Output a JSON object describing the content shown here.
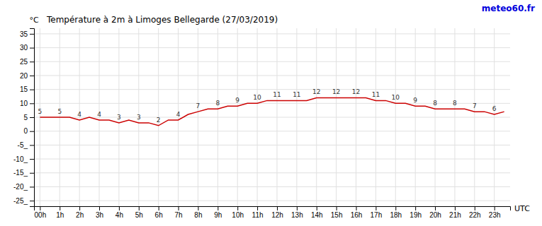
{
  "chart_data": {
    "type": "line",
    "title": "Température à 2m à Limoges Bellegarde (27/03/2019)",
    "x_label": "UTC",
    "y_label": "°C",
    "annotations": [
      {
        "text": "meteo60.fr",
        "color": "#0000dd"
      }
    ],
    "x": [
      0,
      0.5,
      1,
      1.5,
      2,
      2.5,
      3,
      3.5,
      4,
      4.5,
      5,
      5.5,
      6,
      6.5,
      7,
      7.5,
      8,
      8.5,
      9,
      9.5,
      10,
      10.5,
      11,
      11.5,
      12,
      12.5,
      13,
      13.5,
      14,
      14.5,
      15,
      15.5,
      16,
      16.5,
      17,
      17.5,
      18,
      18.5,
      19,
      19.5,
      20,
      20.5,
      21,
      21.5,
      22,
      22.5,
      23,
      23.5
    ],
    "values": [
      5,
      5,
      5,
      5,
      4,
      5,
      4,
      4,
      3,
      4,
      3,
      3,
      2,
      4,
      4,
      6,
      7,
      8,
      8,
      9,
      9,
      10,
      10,
      11,
      11,
      11,
      11,
      11,
      12,
      12,
      12,
      12,
      12,
      12,
      11,
      11,
      10,
      10,
      9,
      9,
      8,
      8,
      8,
      8,
      7,
      7,
      6,
      7
    ],
    "data_labels": true,
    "value_labels": [
      "5",
      null,
      "5",
      null,
      "4",
      null,
      "4",
      null,
      "3",
      null,
      "3",
      null,
      "2",
      null,
      "4",
      null,
      "7",
      null,
      "8",
      null,
      "9",
      null,
      "10",
      null,
      "11",
      null,
      "11",
      null,
      "12",
      null,
      "12",
      null,
      "12",
      null,
      "11",
      null,
      "10",
      null,
      "9",
      null,
      "8",
      null,
      "8",
      null,
      "7",
      null,
      "6",
      null
    ],
    "color": "#cc0000",
    "xlim": [
      -0.3,
      23.8
    ],
    "xticks": [
      {
        "value": 0,
        "label": "00h"
      },
      {
        "value": 1,
        "label": "1h"
      },
      {
        "value": 2,
        "label": "2h"
      },
      {
        "value": 3,
        "label": "3h"
      },
      {
        "value": 4,
        "label": "4h"
      },
      {
        "value": 5,
        "label": "5h"
      },
      {
        "value": 6,
        "label": "6h"
      },
      {
        "value": 7,
        "label": "7h"
      },
      {
        "value": 8,
        "label": "8h"
      },
      {
        "value": 9,
        "label": "9h"
      },
      {
        "value": 10,
        "label": "10h"
      },
      {
        "value": 11,
        "label": "11h"
      },
      {
        "value": 12,
        "label": "12h"
      },
      {
        "value": 13,
        "label": "13h"
      },
      {
        "value": 14,
        "label": "14h"
      },
      {
        "value": 15,
        "label": "15h"
      },
      {
        "value": 16,
        "label": "16h"
      },
      {
        "value": 17,
        "label": "17h"
      },
      {
        "value": 18,
        "label": "18h"
      },
      {
        "value": 19,
        "label": "19h"
      },
      {
        "value": 20,
        "label": "20h"
      },
      {
        "value": 21,
        "label": "21h"
      },
      {
        "value": 22,
        "label": "22h"
      },
      {
        "value": 23,
        "label": "23h"
      }
    ],
    "ylim": [
      -27,
      37
    ],
    "yticks": [
      {
        "value": -25,
        "label": "-25_"
      },
      {
        "value": -20,
        "label": "-20_"
      },
      {
        "value": -15,
        "label": "-15_"
      },
      {
        "value": -10,
        "label": "-10_"
      },
      {
        "value": -5,
        "label": "-5_"
      },
      0,
      5,
      10,
      15,
      20,
      25,
      30,
      35
    ],
    "grid": true
  }
}
